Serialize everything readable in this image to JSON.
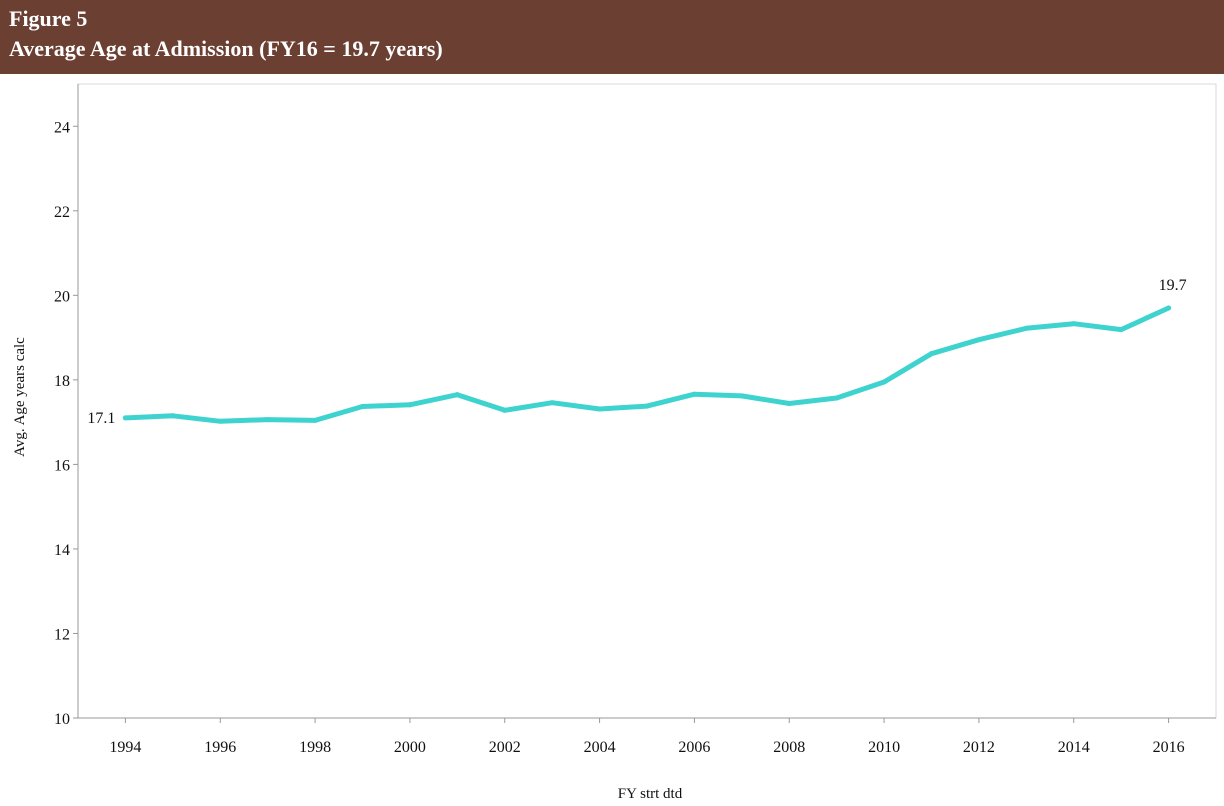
{
  "figure": {
    "number": "Figure 5",
    "title": "Average Age at Admission (FY16 = 19.7 years)",
    "header_color": "#6b3f32"
  },
  "chart_data": {
    "type": "line",
    "xlabel": "FY strt dtd",
    "ylabel": "Avg. Age years calc",
    "xlim": [
      1993,
      2017
    ],
    "ylim": [
      10,
      25
    ],
    "x_ticks": [
      1994,
      1996,
      1998,
      2000,
      2002,
      2004,
      2006,
      2008,
      2010,
      2012,
      2014,
      2016
    ],
    "y_ticks": [
      10,
      12,
      14,
      16,
      18,
      20,
      22,
      24
    ],
    "line_color": "#3fd3d0",
    "series": [
      {
        "x": [
          1994,
          1995,
          1996,
          1997,
          1998,
          1999,
          2000,
          2001,
          2002,
          2003,
          2004,
          2005,
          2006,
          2007,
          2008,
          2009,
          2010,
          2011,
          2012,
          2013,
          2014,
          2015,
          2016
        ],
        "values": [
          17.1,
          17.15,
          17.02,
          17.06,
          17.04,
          17.37,
          17.41,
          17.65,
          17.28,
          17.46,
          17.31,
          17.38,
          17.66,
          17.62,
          17.44,
          17.57,
          17.95,
          18.62,
          18.95,
          19.22,
          19.33,
          19.19,
          19.7
        ]
      }
    ],
    "annotations": [
      {
        "x": 1994,
        "y": 17.1,
        "text": "17.1",
        "position": "left"
      },
      {
        "x": 2016,
        "y": 19.7,
        "text": "19.7",
        "position": "top"
      }
    ]
  }
}
